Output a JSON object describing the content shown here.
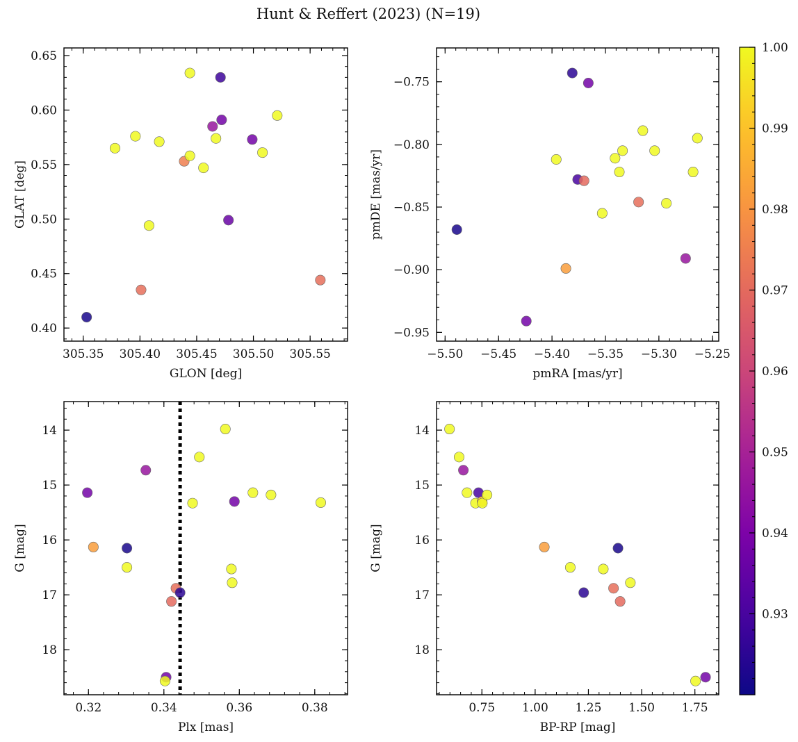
{
  "figure": {
    "title": "Hunt & Reffert (2023) (N=19)"
  },
  "colorbar": {
    "min": 0.92,
    "max": 1.0,
    "ticks": [
      0.93,
      0.94,
      0.95,
      0.96,
      0.97,
      0.98,
      0.99,
      1.0
    ],
    "tick_labels": [
      "0.93",
      "0.94",
      "0.95",
      "0.96",
      "0.97",
      "0.98",
      "0.99",
      "1.00"
    ],
    "colormap": "plasma"
  },
  "chart_data": [
    {
      "type": "scatter",
      "id": "glon-glat",
      "xlabel": "GLON [deg]",
      "ylabel": "GLAT [deg]",
      "xlim": [
        305.333,
        305.583
      ],
      "ylim": [
        0.388,
        0.657
      ],
      "xticks": [
        305.35,
        305.4,
        305.45,
        305.5,
        305.55
      ],
      "xtick_labels": [
        "305.35",
        "305.40",
        "305.45",
        "305.50",
        "305.55"
      ],
      "yticks": [
        0.4,
        0.45,
        0.5,
        0.55,
        0.6,
        0.65
      ],
      "ytick_labels": [
        "0.40",
        "0.45",
        "0.50",
        "0.55",
        "0.60",
        "0.65"
      ],
      "points": [
        {
          "x": 305.353,
          "y": 0.41,
          "c": 0.922
        },
        {
          "x": 305.378,
          "y": 0.565,
          "c": 1.0
        },
        {
          "x": 305.396,
          "y": 0.576,
          "c": 1.0
        },
        {
          "x": 305.401,
          "y": 0.435,
          "c": 0.971
        },
        {
          "x": 305.408,
          "y": 0.494,
          "c": 1.0
        },
        {
          "x": 305.417,
          "y": 0.571,
          "c": 1.0
        },
        {
          "x": 305.439,
          "y": 0.553,
          "c": 0.975
        },
        {
          "x": 305.444,
          "y": 0.634,
          "c": 1.0
        },
        {
          "x": 305.444,
          "y": 0.558,
          "c": 1.0
        },
        {
          "x": 305.456,
          "y": 0.547,
          "c": 1.0
        },
        {
          "x": 305.464,
          "y": 0.585,
          "c": 0.946
        },
        {
          "x": 305.467,
          "y": 0.574,
          "c": 1.0
        },
        {
          "x": 305.471,
          "y": 0.63,
          "c": 0.928
        },
        {
          "x": 305.472,
          "y": 0.591,
          "c": 0.938
        },
        {
          "x": 305.478,
          "y": 0.499,
          "c": 0.936
        },
        {
          "x": 305.499,
          "y": 0.573,
          "c": 0.938
        },
        {
          "x": 305.508,
          "y": 0.561,
          "c": 1.0
        },
        {
          "x": 305.521,
          "y": 0.595,
          "c": 1.0
        },
        {
          "x": 305.559,
          "y": 0.444,
          "c": 0.971
        }
      ]
    },
    {
      "type": "scatter",
      "id": "pm",
      "xlabel": "pmRA [mas/yr]",
      "ylabel": "pmDE [mas/yr]",
      "xlim": [
        -5.508,
        -5.244
      ],
      "ylim": [
        -0.957,
        -0.723
      ],
      "xticks": [
        -5.5,
        -5.45,
        -5.4,
        -5.35,
        -5.3,
        -5.25
      ],
      "xtick_labels": [
        "−5.50",
        "−5.45",
        "−5.40",
        "−5.35",
        "−5.30",
        "−5.25"
      ],
      "yticks": [
        -0.95,
        -0.9,
        -0.85,
        -0.8,
        -0.75
      ],
      "ytick_labels": [
        "−0.95",
        "−0.90",
        "−0.85",
        "−0.80",
        "−0.75"
      ],
      "points": [
        {
          "x": -5.489,
          "y": -0.868,
          "c": 0.922
        },
        {
          "x": -5.424,
          "y": -0.941,
          "c": 0.938
        },
        {
          "x": -5.396,
          "y": -0.812,
          "c": 1.0
        },
        {
          "x": -5.387,
          "y": -0.899,
          "c": 0.982
        },
        {
          "x": -5.381,
          "y": -0.743,
          "c": 0.925
        },
        {
          "x": -5.376,
          "y": -0.828,
          "c": 0.93
        },
        {
          "x": -5.37,
          "y": -0.829,
          "c": 0.97
        },
        {
          "x": -5.366,
          "y": -0.751,
          "c": 0.938
        },
        {
          "x": -5.353,
          "y": -0.855,
          "c": 1.0
        },
        {
          "x": -5.341,
          "y": -0.811,
          "c": 1.0
        },
        {
          "x": -5.337,
          "y": -0.822,
          "c": 1.0
        },
        {
          "x": -5.334,
          "y": -0.805,
          "c": 1.0
        },
        {
          "x": -5.319,
          "y": -0.846,
          "c": 0.971
        },
        {
          "x": -5.315,
          "y": -0.789,
          "c": 1.0
        },
        {
          "x": -5.304,
          "y": -0.805,
          "c": 1.0
        },
        {
          "x": -5.293,
          "y": -0.847,
          "c": 1.0
        },
        {
          "x": -5.275,
          "y": -0.891,
          "c": 0.946
        },
        {
          "x": -5.268,
          "y": -0.822,
          "c": 1.0
        },
        {
          "x": -5.264,
          "y": -0.795,
          "c": 1.0
        }
      ]
    },
    {
      "type": "scatter",
      "id": "plx-g",
      "xlabel": "Plx [mas]",
      "ylabel": "G [mag]",
      "xlim": [
        0.3135,
        0.3887
      ],
      "ylim": [
        18.82,
        13.48
      ],
      "y_inverted": true,
      "vline": {
        "x": 0.3443,
        "style": "dotted"
      },
      "xticks": [
        0.32,
        0.34,
        0.36,
        0.38
      ],
      "xtick_labels": [
        "0.32",
        "0.34",
        "0.36",
        "0.38"
      ],
      "yticks": [
        14,
        15,
        16,
        17,
        18
      ],
      "ytick_labels": [
        "14",
        "15",
        "16",
        "17",
        "18"
      ],
      "points": [
        {
          "x": 0.3197,
          "y": 15.14,
          "c": 0.938
        },
        {
          "x": 0.3213,
          "y": 16.13,
          "c": 0.982
        },
        {
          "x": 0.3302,
          "y": 16.5,
          "c": 1.0
        },
        {
          "x": 0.3302,
          "y": 16.15,
          "c": 0.922
        },
        {
          "x": 0.3352,
          "y": 14.73,
          "c": 0.946
        },
        {
          "x": 0.3406,
          "y": 18.5,
          "c": 0.938
        },
        {
          "x": 0.3403,
          "y": 18.57,
          "c": 1.0
        },
        {
          "x": 0.342,
          "y": 17.12,
          "c": 0.97
        },
        {
          "x": 0.3432,
          "y": 16.88,
          "c": 0.971
        },
        {
          "x": 0.3443,
          "y": 16.96,
          "c": 0.925
        },
        {
          "x": 0.3476,
          "y": 15.33,
          "c": 1.0
        },
        {
          "x": 0.3494,
          "y": 14.49,
          "c": 1.0
        },
        {
          "x": 0.3563,
          "y": 13.98,
          "c": 1.0
        },
        {
          "x": 0.3579,
          "y": 16.53,
          "c": 1.0
        },
        {
          "x": 0.3581,
          "y": 16.78,
          "c": 1.0
        },
        {
          "x": 0.3587,
          "y": 15.3,
          "c": 0.938
        },
        {
          "x": 0.3636,
          "y": 15.14,
          "c": 1.0
        },
        {
          "x": 0.3684,
          "y": 15.18,
          "c": 1.0
        },
        {
          "x": 0.3816,
          "y": 15.32,
          "c": 1.0
        }
      ]
    },
    {
      "type": "scatter",
      "id": "cmd",
      "xlabel": "BP-RP [mag]",
      "ylabel": "G [mag]",
      "xlim": [
        0.537,
        1.862
      ],
      "ylim": [
        18.82,
        13.48
      ],
      "y_inverted": true,
      "xticks": [
        0.75,
        1.0,
        1.25,
        1.5,
        1.75
      ],
      "xtick_labels": [
        "0.75",
        "1.00",
        "1.25",
        "1.50",
        "1.75"
      ],
      "yticks": [
        14,
        15,
        16,
        17,
        18
      ],
      "ytick_labels": [
        "14",
        "15",
        "16",
        "17",
        "18"
      ],
      "points": [
        {
          "x": 0.598,
          "y": 13.98,
          "c": 1.0
        },
        {
          "x": 0.643,
          "y": 14.49,
          "c": 1.0
        },
        {
          "x": 0.663,
          "y": 14.73,
          "c": 0.946
        },
        {
          "x": 0.68,
          "y": 15.14,
          "c": 1.0
        },
        {
          "x": 0.72,
          "y": 15.33,
          "c": 1.0
        },
        {
          "x": 0.734,
          "y": 15.14,
          "c": 0.93
        },
        {
          "x": 0.751,
          "y": 15.3,
          "c": 0.99
        },
        {
          "x": 0.752,
          "y": 15.33,
          "c": 1.0
        },
        {
          "x": 0.774,
          "y": 15.18,
          "c": 1.0
        },
        {
          "x": 1.043,
          "y": 16.13,
          "c": 0.982
        },
        {
          "x": 1.165,
          "y": 16.5,
          "c": 1.0
        },
        {
          "x": 1.228,
          "y": 16.96,
          "c": 0.925
        },
        {
          "x": 1.32,
          "y": 16.53,
          "c": 1.0
        },
        {
          "x": 1.368,
          "y": 16.88,
          "c": 0.971
        },
        {
          "x": 1.389,
          "y": 16.15,
          "c": 0.922
        },
        {
          "x": 1.399,
          "y": 17.12,
          "c": 0.97
        },
        {
          "x": 1.447,
          "y": 16.78,
          "c": 1.0
        },
        {
          "x": 1.753,
          "y": 18.57,
          "c": 1.0
        },
        {
          "x": 1.8,
          "y": 18.5,
          "c": 0.938
        }
      ]
    }
  ]
}
